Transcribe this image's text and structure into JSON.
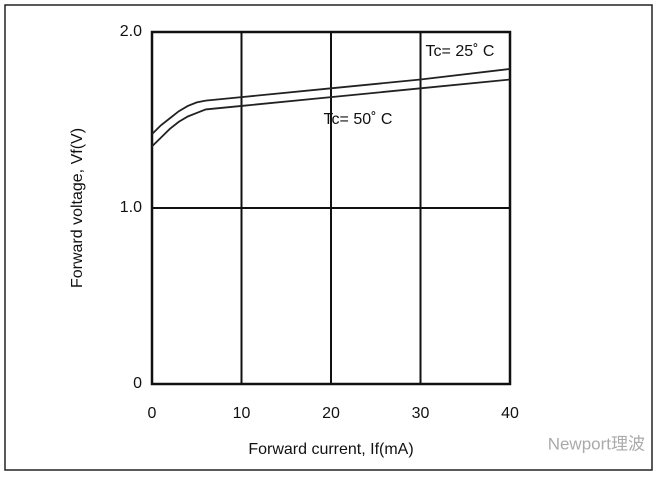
{
  "chart_data": {
    "type": "line",
    "x_label": "Forward current, If(mA)",
    "y_label": "Forward voltage, Vf(V)",
    "x": [
      0,
      1,
      2,
      3,
      4,
      5,
      6,
      10,
      20,
      30,
      40
    ],
    "series": [
      {
        "name": "Tc= 25˚ C",
        "color": "#222222",
        "values": [
          1.42,
          1.47,
          1.51,
          1.55,
          1.58,
          1.6,
          1.61,
          1.63,
          1.68,
          1.73,
          1.79
        ]
      },
      {
        "name": "Tc= 50˚ C",
        "color": "#222222",
        "values": [
          1.35,
          1.4,
          1.45,
          1.49,
          1.52,
          1.54,
          1.56,
          1.58,
          1.63,
          1.68,
          1.73
        ]
      }
    ],
    "xlim": [
      0,
      40
    ],
    "xticks": [
      0,
      10,
      20,
      30,
      40
    ],
    "ylim": [
      0,
      2
    ],
    "yticks": [
      0,
      {
        "value": 1,
        "label": "1.0"
      },
      {
        "value": 2,
        "label": "2.0"
      }
    ],
    "grid": true,
    "watermark": "Newport理波"
  }
}
